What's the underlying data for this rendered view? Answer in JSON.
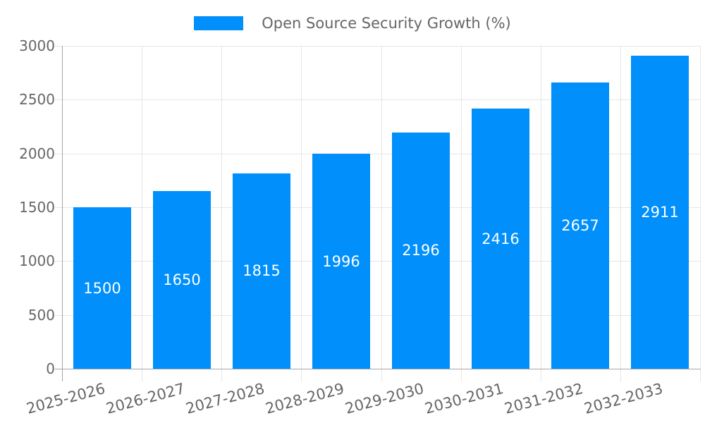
{
  "legend": {
    "label": "Open Source Security Growth (%)"
  },
  "chart_data": {
    "type": "bar",
    "title": "Open Source Security Growth (%)",
    "categories": [
      "2025-2026",
      "2026-2027",
      "2027-2028",
      "2028-2029",
      "2029-2030",
      "2030-2031",
      "2031-2032",
      "2032-2033"
    ],
    "values": [
      1500,
      1650,
      1815,
      1996,
      2196,
      2416,
      2657,
      2911
    ],
    "series": [
      {
        "name": "Open Source Security Growth (%)",
        "values": [
          1500,
          1650,
          1815,
          1996,
          2196,
          2416,
          2657,
          2911
        ]
      }
    ],
    "xlabel": "",
    "ylabel": "",
    "ylim": [
      0,
      3000
    ],
    "yticks": [
      0,
      500,
      1000,
      1500,
      2000,
      2500,
      3000
    ],
    "grid": true,
    "legend_position": "top",
    "x_label_rotation_deg": -15,
    "bar_color": "#008FFB",
    "value_label_color": "#FFFFFF",
    "axis_text_color": "#666666",
    "grid_color": "#E6E6E6",
    "axis_line_color": "#A6A6A6"
  }
}
